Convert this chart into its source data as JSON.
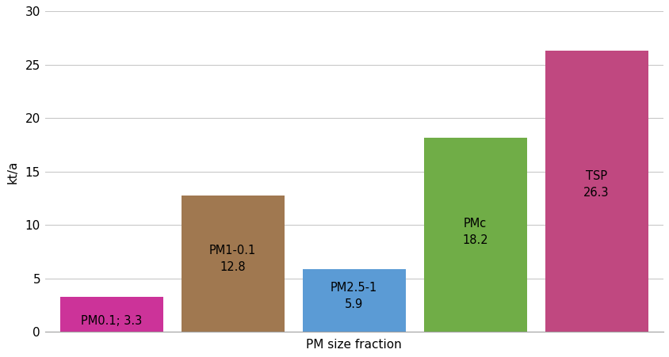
{
  "categories": [
    "PM0.1",
    "PM1-0.1",
    "PM2.5-1",
    "PMc",
    "TSP"
  ],
  "values": [
    3.3,
    12.8,
    5.9,
    18.2,
    26.3
  ],
  "bar_colors": [
    "#cc3399",
    "#a07850",
    "#5b9bd5",
    "#70ad47",
    "#c04880"
  ],
  "bar_labels": [
    "PM0.1; 3.3",
    "PM1-0.1\n12.8",
    "PM2.5-1\n5.9",
    "PMc\n18.2",
    "TSP\n26.3"
  ],
  "label_y_positions": [
    0.5,
    5.5,
    2.0,
    8.0,
    12.5
  ],
  "xlabel": "PM size fraction",
  "ylabel": "kt/a",
  "ylim": [
    0,
    30
  ],
  "yticks": [
    0,
    5,
    10,
    15,
    20,
    25,
    30
  ],
  "background_color": "#ffffff",
  "grid_color": "#c8c8c8",
  "bar_width": 0.85,
  "bar_gap": 0.05,
  "label_fontsize": 10.5,
  "axis_label_fontsize": 11,
  "tick_fontsize": 11
}
